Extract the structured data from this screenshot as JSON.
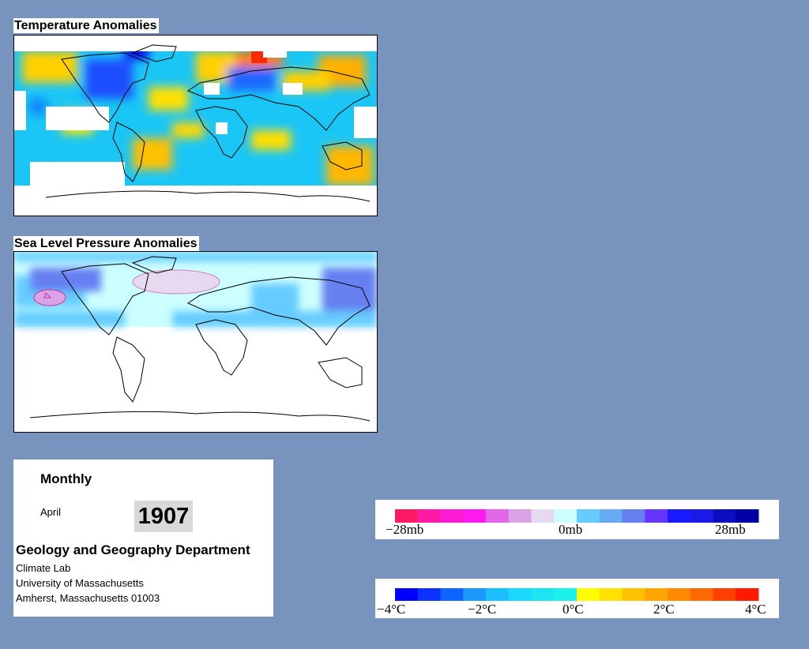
{
  "maps": {
    "temperature": {
      "title": "Temperature Anomalies"
    },
    "pressure": {
      "title": "Sea Level Pressure Anomalies"
    }
  },
  "info": {
    "period": "Monthly",
    "month": "April",
    "year": "1907",
    "department": "Geology and Geography Department",
    "lab": "Climate Lab",
    "university": "University of Massachusetts",
    "address": "Amherst, Massachusetts 01003"
  },
  "legends": {
    "pressure": {
      "labels": [
        "−28mb",
        "0mb",
        "28mb"
      ],
      "colors": [
        "#ff1a66",
        "#ff1aa6",
        "#ff1ad6",
        "#ff1af0",
        "#e066e6",
        "#d9a3e6",
        "#e6d9f0",
        "#ccffff",
        "#66ccff",
        "#66aaf2",
        "#6680f2",
        "#6633ff",
        "#1a1aff",
        "#1a1ae6",
        "#0d0dbf",
        "#0000a6"
      ]
    },
    "temperature": {
      "labels": [
        "−4°C",
        "−2°C",
        "0°C",
        "2°C",
        "4°C"
      ],
      "colors": [
        "#0000ff",
        "#0a33ff",
        "#0d66ff",
        "#1a99ff",
        "#1abfff",
        "#1ad9ff",
        "#1ae6f2",
        "#1af0ec",
        "#ffff00",
        "#ffe000",
        "#ffc000",
        "#ffa500",
        "#ff8a00",
        "#ff6a00",
        "#ff4000",
        "#ff1a00"
      ]
    }
  }
}
